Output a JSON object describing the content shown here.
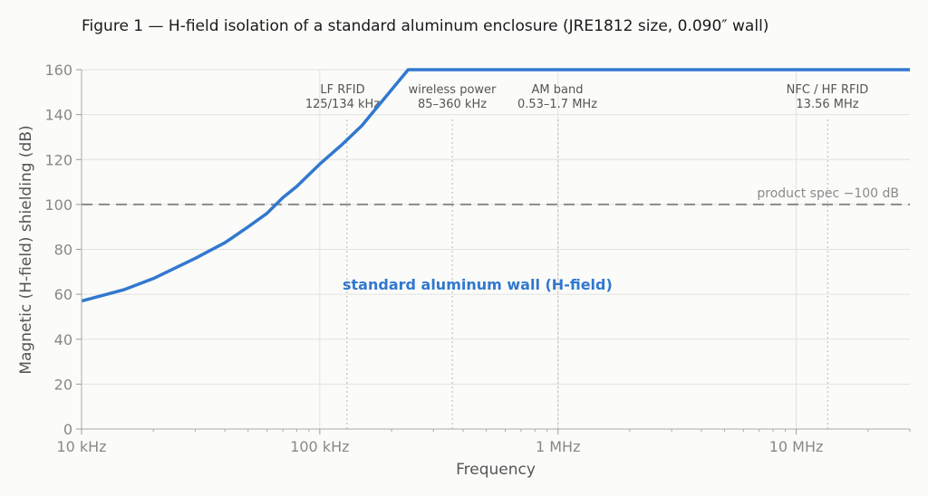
{
  "chart_data": {
    "type": "line",
    "title": "Figure 1 — H-field isolation of a standard aluminum enclosure (JRE1812 size, 0.090″ wall)",
    "xlabel": "Frequency",
    "ylabel": "Magnetic (H-field) shielding (dB)",
    "xscale": "log",
    "xlim_hz": [
      10000,
      30000000
    ],
    "ylim": [
      0,
      160
    ],
    "x_ticks": [
      {
        "value_hz": 10000,
        "label": "10 kHz"
      },
      {
        "value_hz": 100000,
        "label": "100 kHz"
      },
      {
        "value_hz": 1000000,
        "label": "1 MHz"
      },
      {
        "value_hz": 10000000,
        "label": "10 MHz"
      }
    ],
    "y_ticks": [
      0,
      20,
      40,
      60,
      80,
      100,
      120,
      140,
      160
    ],
    "grid": true,
    "series": [
      {
        "name": "standard aluminum wall (H-field)",
        "color": "#3178cf",
        "clipped_at": 160,
        "points": [
          {
            "x_hz": 10000,
            "y": 57
          },
          {
            "x_hz": 15000,
            "y": 62
          },
          {
            "x_hz": 20000,
            "y": 67
          },
          {
            "x_hz": 30000,
            "y": 76
          },
          {
            "x_hz": 40000,
            "y": 83
          },
          {
            "x_hz": 50000,
            "y": 90
          },
          {
            "x_hz": 60000,
            "y": 96
          },
          {
            "x_hz": 70000,
            "y": 103
          },
          {
            "x_hz": 80000,
            "y": 108
          },
          {
            "x_hz": 100000,
            "y": 118
          },
          {
            "x_hz": 125000,
            "y": 127
          },
          {
            "x_hz": 150000,
            "y": 135
          },
          {
            "x_hz": 200000,
            "y": 151
          },
          {
            "x_hz": 235000,
            "y": 160
          },
          {
            "x_hz": 30000000,
            "y": 160
          }
        ]
      }
    ],
    "reference_line": {
      "y": 100,
      "label": "product spec −100 dB",
      "color": "#8a8a8a"
    },
    "bands": [
      {
        "line1": "LF RFID",
        "line2": "125/134 kHz",
        "x_hz": 130000
      },
      {
        "line1": "wireless power",
        "line2": "85–360 kHz",
        "x_hz": 360000
      },
      {
        "line1": "AM band",
        "line2": "0.53–1.7 MHz",
        "x_hz": 1000000
      },
      {
        "line1": "NFC / HF RFID",
        "line2": "13.56 MHz",
        "x_hz": 13560000
      }
    ]
  }
}
